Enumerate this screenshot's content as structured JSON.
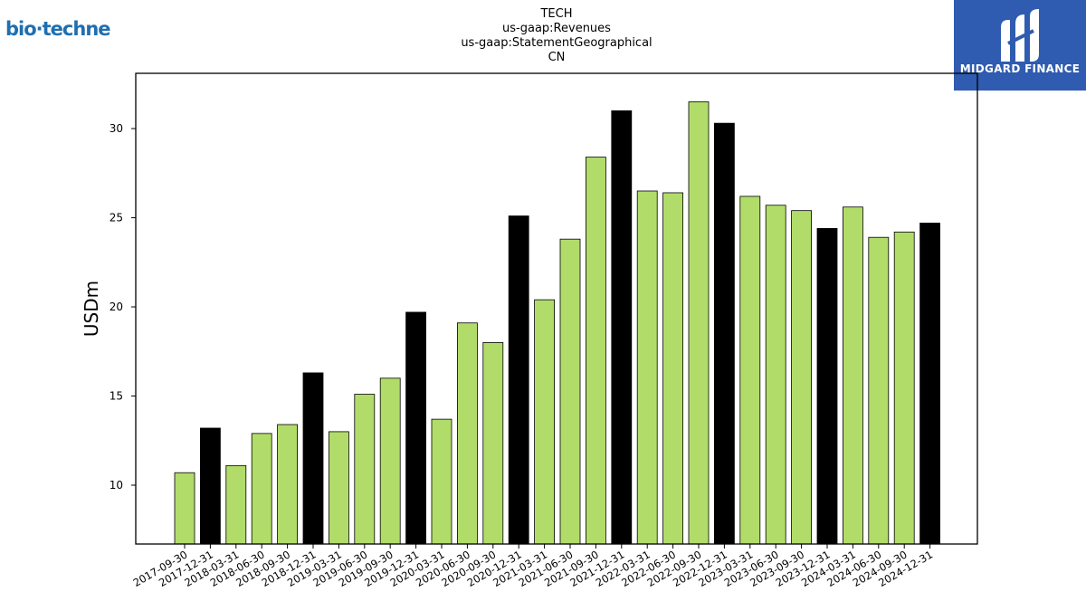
{
  "branding": {
    "company_logo_text": "bio·techne",
    "publisher_logo_text": "MIDGARD FINANCE"
  },
  "chart_data": {
    "type": "bar",
    "title_lines": [
      "TECH",
      "us-gaap:Revenues",
      "us-gaap:StatementGeographical",
      "CN"
    ],
    "xlabel": "",
    "ylabel": "USDm",
    "ylim": [
      6.7,
      33.1
    ],
    "yticks": [
      10,
      15,
      20,
      25,
      30
    ],
    "grid": false,
    "legend": "none",
    "colors": {
      "quarter": "#b2dc6a",
      "year_end": "#000000",
      "edge": "#000000"
    },
    "categories": [
      "2017-09-30",
      "2017-12-31",
      "2018-03-31",
      "2018-06-30",
      "2018-09-30",
      "2018-12-31",
      "2019-03-31",
      "2019-06-30",
      "2019-09-30",
      "2019-12-31",
      "2020-03-31",
      "2020-06-30",
      "2020-09-30",
      "2020-12-31",
      "2021-03-31",
      "2021-06-30",
      "2021-09-30",
      "2021-12-31",
      "2022-03-31",
      "2022-06-30",
      "2022-09-30",
      "2022-12-31",
      "2023-03-31",
      "2023-06-30",
      "2023-09-30",
      "2023-12-31",
      "2024-03-31",
      "2024-06-30",
      "2024-09-30",
      "2024-12-31"
    ],
    "values": [
      10.7,
      13.2,
      11.1,
      12.9,
      13.4,
      16.3,
      13.0,
      15.1,
      16.0,
      19.7,
      13.7,
      19.1,
      18.0,
      25.1,
      20.4,
      23.8,
      28.4,
      31.0,
      26.5,
      26.4,
      31.5,
      30.3,
      26.2,
      25.7,
      25.4,
      24.4,
      25.6,
      23.9,
      24.2,
      24.7
    ]
  }
}
